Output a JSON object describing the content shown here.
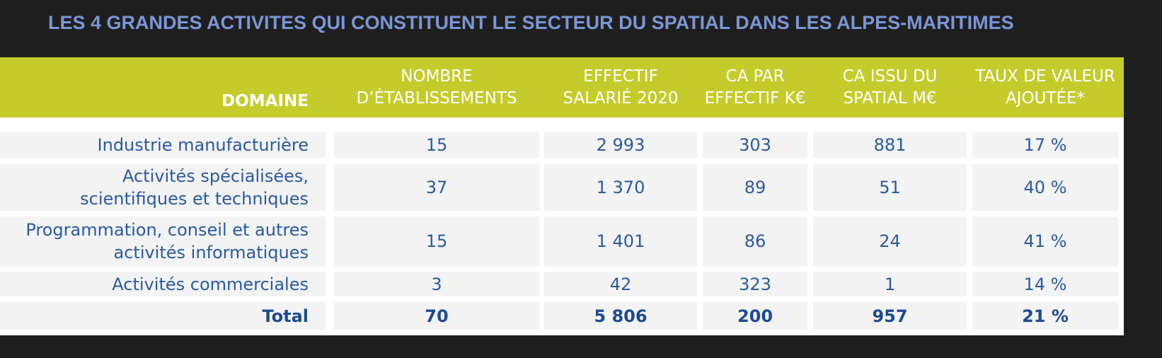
{
  "chart_data": {
    "type": "table",
    "title": "LES 4 GRANDES ACTIVITES QUI CONSTITUENT LE SECTEUR DU SPATIAL DANS LES ALPES-MARITIMES",
    "columns": [
      "DOMAINE",
      "NOMBRE D’ÉTABLISSEMENTS",
      "EFFECTIF SALARIÉ 2020",
      "CA PAR EFFECTIF K€",
      "CA ISSU DU SPATIAL M€",
      "TAUX DE VALEUR AJOUTÉE*"
    ],
    "rows": [
      {
        "domaine": "Industrie manufacturière",
        "etablissements": "15",
        "effectif": "2 993",
        "ca_par_effectif": "303",
        "ca_spatial": "881",
        "taux_va": "17 %"
      },
      {
        "domaine": "Activités spécialisées, scientifiques et techniques",
        "etablissements": "37",
        "effectif": "1 370",
        "ca_par_effectif": "89",
        "ca_spatial": "51",
        "taux_va": "40 %"
      },
      {
        "domaine": "Programmation, conseil et autres activités informatiques",
        "etablissements": "15",
        "effectif": "1 401",
        "ca_par_effectif": "86",
        "ca_spatial": "24",
        "taux_va": "41 %"
      },
      {
        "domaine": "Activités commerciales",
        "etablissements": "3",
        "effectif": "42",
        "ca_par_effectif": "323",
        "ca_spatial": "1",
        "taux_va": "14 %"
      }
    ],
    "total": {
      "domaine": "Total",
      "etablissements": "70",
      "effectif": "5 806",
      "ca_par_effectif": "200",
      "ca_spatial": "957",
      "taux_va": "21 %"
    }
  },
  "header_lines": {
    "domaine": [
      "DOMAINE"
    ],
    "etablissements": [
      "NOMBRE",
      "D’ÉTABLISSEMENTS"
    ],
    "effectif": [
      "EFFECTIF",
      "SALARIÉ 2020"
    ],
    "ca_par_effectif": [
      "CA PAR",
      "EFFECTIF K€"
    ],
    "ca_spatial": [
      "CA ISSU DU",
      "SPATIAL M€"
    ],
    "taux_va": [
      "TAUX DE VALEUR",
      "AJOUTÉE*"
    ]
  },
  "row_label_lines": [
    [
      "Industrie manufacturière"
    ],
    [
      "Activités spécialisées,",
      "scientifiques et techniques"
    ],
    [
      "Programmation, conseil et autres",
      "activités informatiques"
    ],
    [
      "Activités commerciales"
    ]
  ],
  "colors": {
    "background": "#1e1e1e",
    "title": "#7b96d6",
    "header": "#c5cb2a",
    "header_text": "#ffffff",
    "cell": "#f3f3f3",
    "cell_text": "#2a5aa3",
    "total_text": "#1e4a92"
  }
}
